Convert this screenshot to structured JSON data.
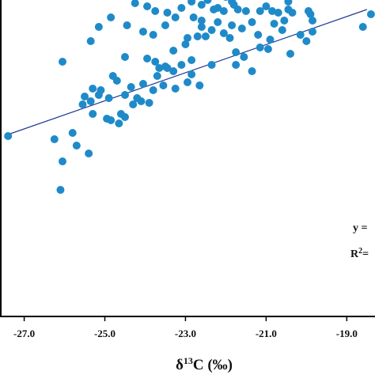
{
  "chart_data": {
    "type": "scatter",
    "xlabel_prefix": "δ",
    "xlabel_sup": "13",
    "xlabel_suffix": "C (‰)",
    "ylabel": "",
    "x_ticks": [
      "-27.0",
      "-25.0",
      "-23.0",
      "-21.0",
      "-19.0"
    ],
    "xlim": [
      -27.6,
      -18.3
    ],
    "ylim": [
      -1.0,
      1.0
    ],
    "grid": false,
    "equation_label": "y =",
    "r2_label_prefix": "R",
    "r2_label_sup": "2",
    "r2_label_suffix": "=",
    "colors": {
      "points": "#1f8ac9",
      "fit_line": "#1f3a93",
      "axis": "#000000"
    },
    "fit_line": {
      "x": [
        -27.4,
        -18.5
      ],
      "y": [
        0.15,
        0.94
      ]
    },
    "points": [
      {
        "x": -27.4,
        "y": 0.14
      },
      {
        "x": -26.25,
        "y": 0.12
      },
      {
        "x": -26.05,
        "y": -0.02
      },
      {
        "x": -26.1,
        "y": -0.2
      },
      {
        "x": -26.05,
        "y": 0.61
      },
      {
        "x": -25.8,
        "y": 0.16
      },
      {
        "x": -25.4,
        "y": 0.03
      },
      {
        "x": -25.55,
        "y": 0.34
      },
      {
        "x": -25.5,
        "y": 0.39
      },
      {
        "x": -25.35,
        "y": 0.36
      },
      {
        "x": -25.3,
        "y": 0.44
      },
      {
        "x": -25.15,
        "y": 0.4
      },
      {
        "x": -25.3,
        "y": 0.28
      },
      {
        "x": -25.1,
        "y": 0.43
      },
      {
        "x": -24.9,
        "y": 0.38
      },
      {
        "x": -24.8,
        "y": 0.52
      },
      {
        "x": -24.7,
        "y": 0.49
      },
      {
        "x": -24.5,
        "y": 0.4
      },
      {
        "x": -24.95,
        "y": 0.25
      },
      {
        "x": -24.85,
        "y": 0.24
      },
      {
        "x": -24.65,
        "y": 0.22
      },
      {
        "x": -24.5,
        "y": 0.26
      },
      {
        "x": -24.3,
        "y": 0.34
      },
      {
        "x": -24.6,
        "y": 0.28
      },
      {
        "x": -24.35,
        "y": 0.45
      },
      {
        "x": -24.2,
        "y": 0.38
      },
      {
        "x": -24.1,
        "y": 0.36
      },
      {
        "x": -23.9,
        "y": 0.35
      },
      {
        "x": -24.05,
        "y": 0.47
      },
      {
        "x": -23.8,
        "y": 0.43
      },
      {
        "x": -23.7,
        "y": 0.52
      },
      {
        "x": -23.65,
        "y": 0.57
      },
      {
        "x": -23.5,
        "y": 0.58
      },
      {
        "x": -23.3,
        "y": 0.55
      },
      {
        "x": -23.25,
        "y": 0.44
      },
      {
        "x": -23.1,
        "y": 0.59
      },
      {
        "x": -22.95,
        "y": 0.48
      },
      {
        "x": -22.85,
        "y": 0.62
      },
      {
        "x": -22.65,
        "y": 0.46
      },
      {
        "x": -23.45,
        "y": 0.57
      },
      {
        "x": -23.55,
        "y": 0.46
      },
      {
        "x": -23.3,
        "y": 0.68
      },
      {
        "x": -23.0,
        "y": 0.72
      },
      {
        "x": -22.95,
        "y": 0.76
      },
      {
        "x": -22.7,
        "y": 0.77
      },
      {
        "x": -22.5,
        "y": 0.77
      },
      {
        "x": -22.6,
        "y": 0.83
      },
      {
        "x": -22.35,
        "y": 0.81
      },
      {
        "x": -22.05,
        "y": 0.79
      },
      {
        "x": -21.9,
        "y": 0.76
      },
      {
        "x": -21.75,
        "y": 0.67
      },
      {
        "x": -21.55,
        "y": 0.64
      },
      {
        "x": -21.15,
        "y": 0.7
      },
      {
        "x": -20.95,
        "y": 0.69
      },
      {
        "x": -20.9,
        "y": 0.75
      },
      {
        "x": -20.6,
        "y": 0.81
      },
      {
        "x": -20.4,
        "y": 0.66
      },
      {
        "x": -20.15,
        "y": 0.78
      },
      {
        "x": -20.0,
        "y": 0.74
      },
      {
        "x": -19.85,
        "y": 0.8
      },
      {
        "x": -19.9,
        "y": 0.91
      },
      {
        "x": -19.85,
        "y": 0.87
      },
      {
        "x": -20.35,
        "y": 0.92
      },
      {
        "x": -20.45,
        "y": 0.94
      },
      {
        "x": -20.7,
        "y": 0.92
      },
      {
        "x": -20.85,
        "y": 0.93
      },
      {
        "x": -21.0,
        "y": 0.96
      },
      {
        "x": -21.15,
        "y": 0.93
      },
      {
        "x": -21.35,
        "y": 0.86
      },
      {
        "x": -21.5,
        "y": 0.93
      },
      {
        "x": -21.7,
        "y": 0.94
      },
      {
        "x": -21.8,
        "y": 0.97
      },
      {
        "x": -22.05,
        "y": 0.93
      },
      {
        "x": -22.3,
        "y": 0.94
      },
      {
        "x": -22.45,
        "y": 1.0
      },
      {
        "x": -22.6,
        "y": 0.97
      },
      {
        "x": -22.85,
        "y": 0.99
      },
      {
        "x": -23.1,
        "y": 0.95
      },
      {
        "x": -23.45,
        "y": 0.92
      },
      {
        "x": -23.75,
        "y": 0.93
      },
      {
        "x": -23.95,
        "y": 0.96
      },
      {
        "x": -24.25,
        "y": 0.98
      },
      {
        "x": -24.45,
        "y": 0.84
      },
      {
        "x": -24.05,
        "y": 0.8
      },
      {
        "x": -23.8,
        "y": 0.78
      },
      {
        "x": -23.5,
        "y": 0.84
      },
      {
        "x": -23.25,
        "y": 0.89
      },
      {
        "x": -24.85,
        "y": 0.89
      },
      {
        "x": -25.15,
        "y": 0.83
      },
      {
        "x": -25.35,
        "y": 0.74
      },
      {
        "x": -23.95,
        "y": 0.63
      },
      {
        "x": -23.75,
        "y": 0.61
      },
      {
        "x": -24.5,
        "y": 0.64
      },
      {
        "x": -23.35,
        "y": 1.05
      },
      {
        "x": -23.05,
        "y": 1.06
      },
      {
        "x": -23.55,
        "y": 1.03
      },
      {
        "x": -22.45,
        "y": 1.05
      },
      {
        "x": -22.2,
        "y": 0.95
      },
      {
        "x": -21.6,
        "y": 1.05
      },
      {
        "x": -21.1,
        "y": 1.05
      },
      {
        "x": -20.45,
        "y": 0.99
      },
      {
        "x": -19.95,
        "y": 0.93
      },
      {
        "x": -22.0,
        "y": 1.02
      },
      {
        "x": -21.85,
        "y": 0.99
      },
      {
        "x": -22.8,
        "y": 0.89
      },
      {
        "x": -22.6,
        "y": 0.87
      },
      {
        "x": -22.2,
        "y": 0.86
      },
      {
        "x": -21.85,
        "y": 0.84
      },
      {
        "x": -21.6,
        "y": 0.82
      },
      {
        "x": -21.2,
        "y": 0.78
      },
      {
        "x": -20.8,
        "y": 0.85
      },
      {
        "x": -20.55,
        "y": 0.87
      },
      {
        "x": -18.75,
        "y": 1.03
      },
      {
        "x": -18.6,
        "y": 1.05
      },
      {
        "x": -18.4,
        "y": 0.91
      },
      {
        "x": -18.6,
        "y": 0.83
      },
      {
        "x": -21.75,
        "y": 0.59
      },
      {
        "x": -21.35,
        "y": 0.55
      },
      {
        "x": -22.85,
        "y": 0.53
      },
      {
        "x": -22.35,
        "y": 0.59
      },
      {
        "x": -25.7,
        "y": 0.08
      }
    ]
  }
}
